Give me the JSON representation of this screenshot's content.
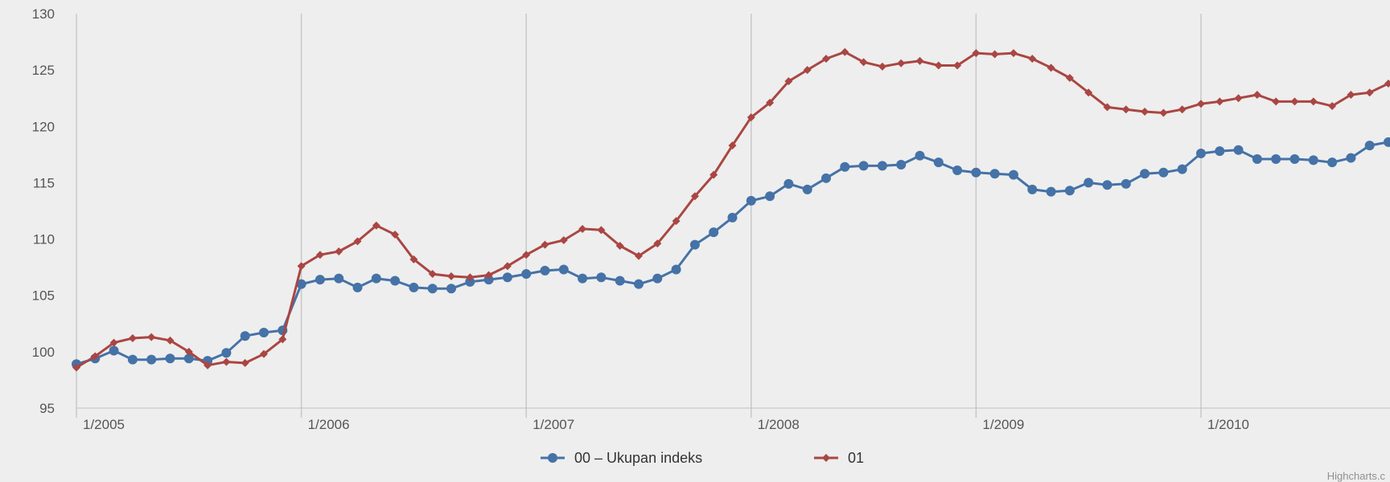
{
  "chart_data": {
    "type": "line",
    "title": "",
    "xlabel": "",
    "ylabel": "",
    "ylim": [
      95,
      130
    ],
    "y_ticks": [
      "95",
      "100",
      "105",
      "110",
      "115",
      "120",
      "125",
      "130"
    ],
    "x_labels": [
      "1/2005",
      "1/2006",
      "1/2007",
      "1/2008",
      "1/2009",
      "1/2010"
    ],
    "x_start": "2005-01",
    "x_frequency": "monthly",
    "grid": "vertical lines at January of each year",
    "legend_position": "bottom",
    "series": [
      {
        "name": "00 – Ukupan indeks",
        "color": "#4572A7",
        "marker": "circle",
        "values": [
          98.9,
          99.4,
          100.1,
          99.3,
          99.3,
          99.4,
          99.4,
          99.2,
          99.9,
          101.4,
          101.7,
          101.9,
          106.0,
          106.4,
          106.5,
          105.7,
          106.5,
          106.3,
          105.7,
          105.6,
          105.6,
          106.2,
          106.4,
          106.6,
          106.9,
          107.2,
          107.3,
          106.5,
          106.6,
          106.3,
          106.0,
          106.5,
          107.3,
          109.5,
          110.6,
          111.9,
          113.4,
          113.8,
          114.9,
          114.4,
          115.4,
          116.4,
          116.5,
          116.5,
          116.6,
          117.4,
          116.8,
          116.1,
          115.9,
          115.8,
          115.7,
          114.4,
          114.2,
          114.3,
          115.0,
          114.8,
          114.9,
          115.8,
          115.9,
          116.2,
          117.6,
          117.8,
          117.9,
          117.1,
          117.1,
          117.1,
          117.0,
          116.8,
          117.2,
          118.3,
          118.6
        ]
      },
      {
        "name": "01",
        "color": "#AA4643",
        "marker": "diamond",
        "values": [
          98.6,
          99.6,
          100.8,
          101.2,
          101.3,
          101.0,
          100.0,
          98.8,
          99.1,
          99.0,
          99.8,
          101.1,
          107.6,
          108.6,
          108.9,
          109.8,
          111.2,
          110.4,
          108.2,
          106.9,
          106.7,
          106.6,
          106.8,
          107.6,
          108.6,
          109.5,
          109.9,
          110.9,
          110.8,
          109.4,
          108.5,
          109.6,
          111.6,
          113.8,
          115.7,
          118.3,
          120.8,
          122.1,
          124.0,
          125.0,
          126.0,
          126.6,
          125.7,
          125.3,
          125.6,
          125.8,
          125.4,
          125.4,
          126.5,
          126.4,
          126.5,
          126.0,
          125.2,
          124.3,
          123.0,
          121.7,
          121.5,
          121.3,
          121.2,
          121.5,
          122.0,
          122.2,
          122.5,
          122.8,
          122.2,
          122.2,
          122.2,
          121.8,
          122.8,
          123.0,
          123.8
        ]
      }
    ]
  },
  "credits": "Highcharts.c"
}
